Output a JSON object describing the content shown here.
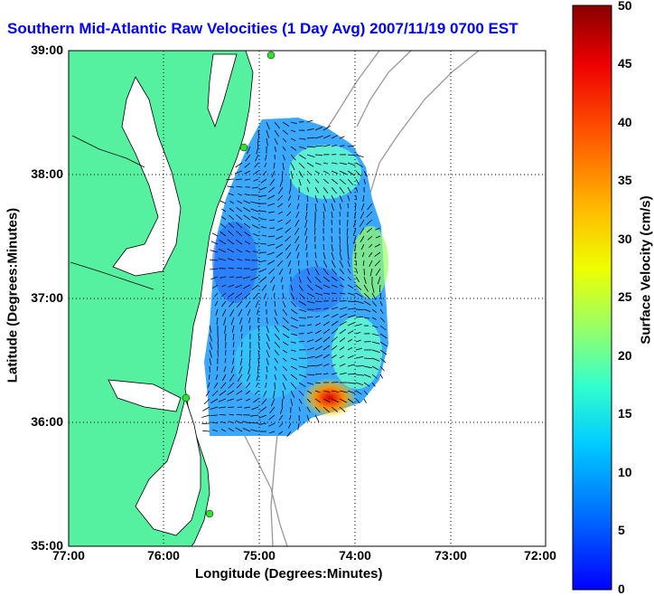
{
  "title": "Southern Mid-Atlantic Raw Velocities (1 Day Avg) 2007/11/19 0700 EST",
  "xaxis": {
    "label": "Longitude (Degrees:Minutes)",
    "ticks": [
      "77:00",
      "76:00",
      "75:00",
      "74:00",
      "73:00",
      "72:00"
    ],
    "range": [
      -77,
      -72
    ]
  },
  "yaxis": {
    "label": "Latitude (Degrees:Minutes)",
    "ticks": [
      "39:00",
      "38:00",
      "37:00",
      "36:00",
      "35:00"
    ],
    "range": [
      35,
      39
    ]
  },
  "colorbar": {
    "label": "Surface Velocity (cm/s)",
    "ticks": [
      "50",
      "45",
      "40",
      "35",
      "30",
      "25",
      "20",
      "15",
      "10",
      "5",
      "0"
    ],
    "range": [
      0,
      50
    ]
  },
  "colors": {
    "land": "#55f0a0",
    "title": "#0000ff",
    "bathymetry": "#999999"
  },
  "grid": true
}
